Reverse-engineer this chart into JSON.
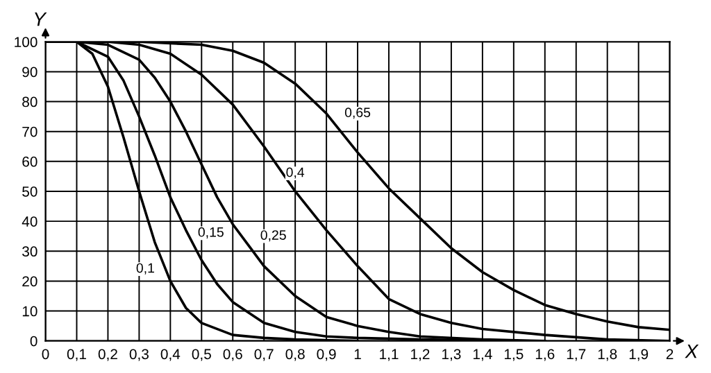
{
  "chart_data": {
    "type": "line",
    "xlabel": "X",
    "ylabel": "Y",
    "xlim": [
      0,
      2
    ],
    "ylim": [
      0,
      100
    ],
    "xticks": [
      0,
      {
        "value": 0.1,
        "label": "0,1"
      },
      {
        "value": 0.2,
        "label": "0,2"
      },
      {
        "value": 0.3,
        "label": "0,3"
      },
      {
        "value": 0.4,
        "label": "0,4"
      },
      {
        "value": 0.5,
        "label": "0,5"
      },
      {
        "value": 0.6,
        "label": "0,6"
      },
      {
        "value": 0.7,
        "label": "0,7"
      },
      {
        "value": 0.8,
        "label": "0,8"
      },
      {
        "value": 0.9,
        "label": "0,9"
      },
      1,
      {
        "value": 1.1,
        "label": "1,1"
      },
      {
        "value": 1.2,
        "label": "1,2"
      },
      {
        "value": 1.3,
        "label": "1,3"
      },
      {
        "value": 1.4,
        "label": "1,4"
      },
      {
        "value": 1.5,
        "label": "1,5"
      },
      {
        "value": 1.6,
        "label": "1,6"
      },
      {
        "value": 1.7,
        "label": "1,7"
      },
      {
        "value": 1.8,
        "label": "1,8"
      },
      {
        "value": 1.9,
        "label": "1,9"
      },
      2
    ],
    "yticks": [
      0,
      10,
      20,
      30,
      40,
      50,
      60,
      70,
      80,
      90,
      100
    ],
    "grid": true,
    "legend": false,
    "marker": "none",
    "line_style": "solid",
    "series": [
      {
        "color": "#000000",
        "x": [
          0,
          0.1,
          0.15,
          0.2,
          0.25,
          0.3,
          0.35,
          0.4,
          0.45,
          0.5,
          0.6,
          0.7,
          0.8,
          1.0
        ],
        "values": [
          100,
          100,
          96,
          85,
          68,
          50,
          33,
          20,
          11,
          6,
          2,
          1,
          0.5,
          0
        ]
      },
      {
        "color": "#000000",
        "x": [
          0,
          0.1,
          0.2,
          0.25,
          0.3,
          0.35,
          0.4,
          0.45,
          0.5,
          0.55,
          0.6,
          0.7,
          0.8,
          0.9,
          1.0,
          1.2,
          1.5
        ],
        "values": [
          100,
          100,
          95,
          87,
          75,
          62,
          48,
          37,
          27,
          19,
          13,
          6,
          3,
          1.5,
          1,
          0.5,
          0
        ]
      },
      {
        "color": "#000000",
        "x": [
          0,
          0.1,
          0.2,
          0.3,
          0.35,
          0.4,
          0.45,
          0.5,
          0.55,
          0.6,
          0.65,
          0.7,
          0.8,
          0.9,
          1.0,
          1.1,
          1.2,
          1.4,
          1.6
        ],
        "values": [
          100,
          100,
          99,
          94,
          88,
          80,
          70,
          59,
          48,
          39,
          32,
          25,
          15,
          8,
          5,
          3,
          1.5,
          0.5,
          0
        ]
      },
      {
        "color": "#000000",
        "x": [
          0,
          0.2,
          0.3,
          0.4,
          0.5,
          0.6,
          0.7,
          0.8,
          0.9,
          1.0,
          1.1,
          1.2,
          1.3,
          1.4,
          1.6,
          1.8,
          2.0
        ],
        "values": [
          100,
          100,
          99,
          96,
          89,
          79,
          65,
          50,
          37,
          25,
          14,
          9,
          6,
          4,
          2,
          0.5,
          0
        ]
      },
      {
        "color": "#000000",
        "x": [
          0,
          0.3,
          0.5,
          0.6,
          0.7,
          0.8,
          0.9,
          1.0,
          1.1,
          1.2,
          1.3,
          1.4,
          1.5,
          1.6,
          1.7,
          1.8,
          1.9,
          2.0
        ],
        "values": [
          100,
          100,
          99,
          97,
          93,
          86,
          76,
          63,
          51,
          41,
          31,
          23,
          17,
          12,
          9,
          6.5,
          4.6,
          3.7
        ]
      }
    ],
    "annotations": [
      {
        "text": "0,1",
        "x": 0.32,
        "y": 24
      },
      {
        "text": "0,15",
        "x": 0.53,
        "y": 36
      },
      {
        "text": "0,25",
        "x": 0.73,
        "y": 35
      },
      {
        "text": "0,4",
        "x": 0.8,
        "y": 56
      },
      {
        "text": "0,65",
        "x": 1.0,
        "y": 76
      }
    ]
  }
}
